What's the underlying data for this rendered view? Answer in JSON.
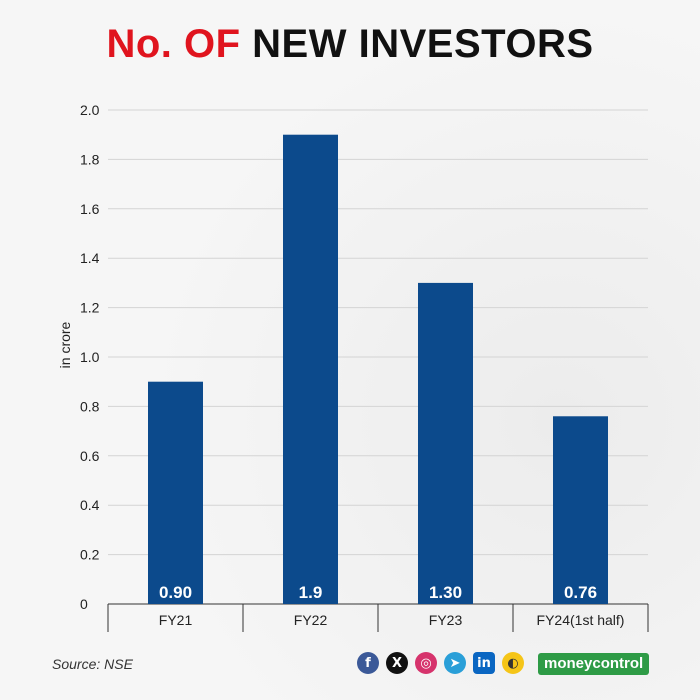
{
  "title": {
    "part1": "No. OF",
    "part2": "NEW INVESTORS"
  },
  "source": "Source: NSE",
  "brand": "moneycontrol",
  "social": [
    "facebook-icon",
    "x-icon",
    "instagram-icon",
    "telegram-icon",
    "linkedin-icon",
    "koo-icon"
  ],
  "colors": {
    "bar": "#0c4a8c",
    "title_red": "#e0141e",
    "brand": "#2e9b46"
  },
  "chart_data": {
    "type": "bar",
    "title": "No. OF NEW INVESTORS",
    "categories": [
      "FY21",
      "FY22",
      "FY23",
      "FY24(1st half)"
    ],
    "values": [
      0.9,
      1.9,
      1.3,
      0.76
    ],
    "value_labels": [
      "0.90",
      "1.9",
      "1.30",
      "0.76"
    ],
    "ylabel": "in crore",
    "ylim": [
      0,
      2.0
    ],
    "yticks": [
      "0",
      "0.2",
      "0.4",
      "0.6",
      "0.8",
      "1.0",
      "1.2",
      "1.4",
      "1.6",
      "1.8",
      "2.0"
    ],
    "grid": true
  }
}
